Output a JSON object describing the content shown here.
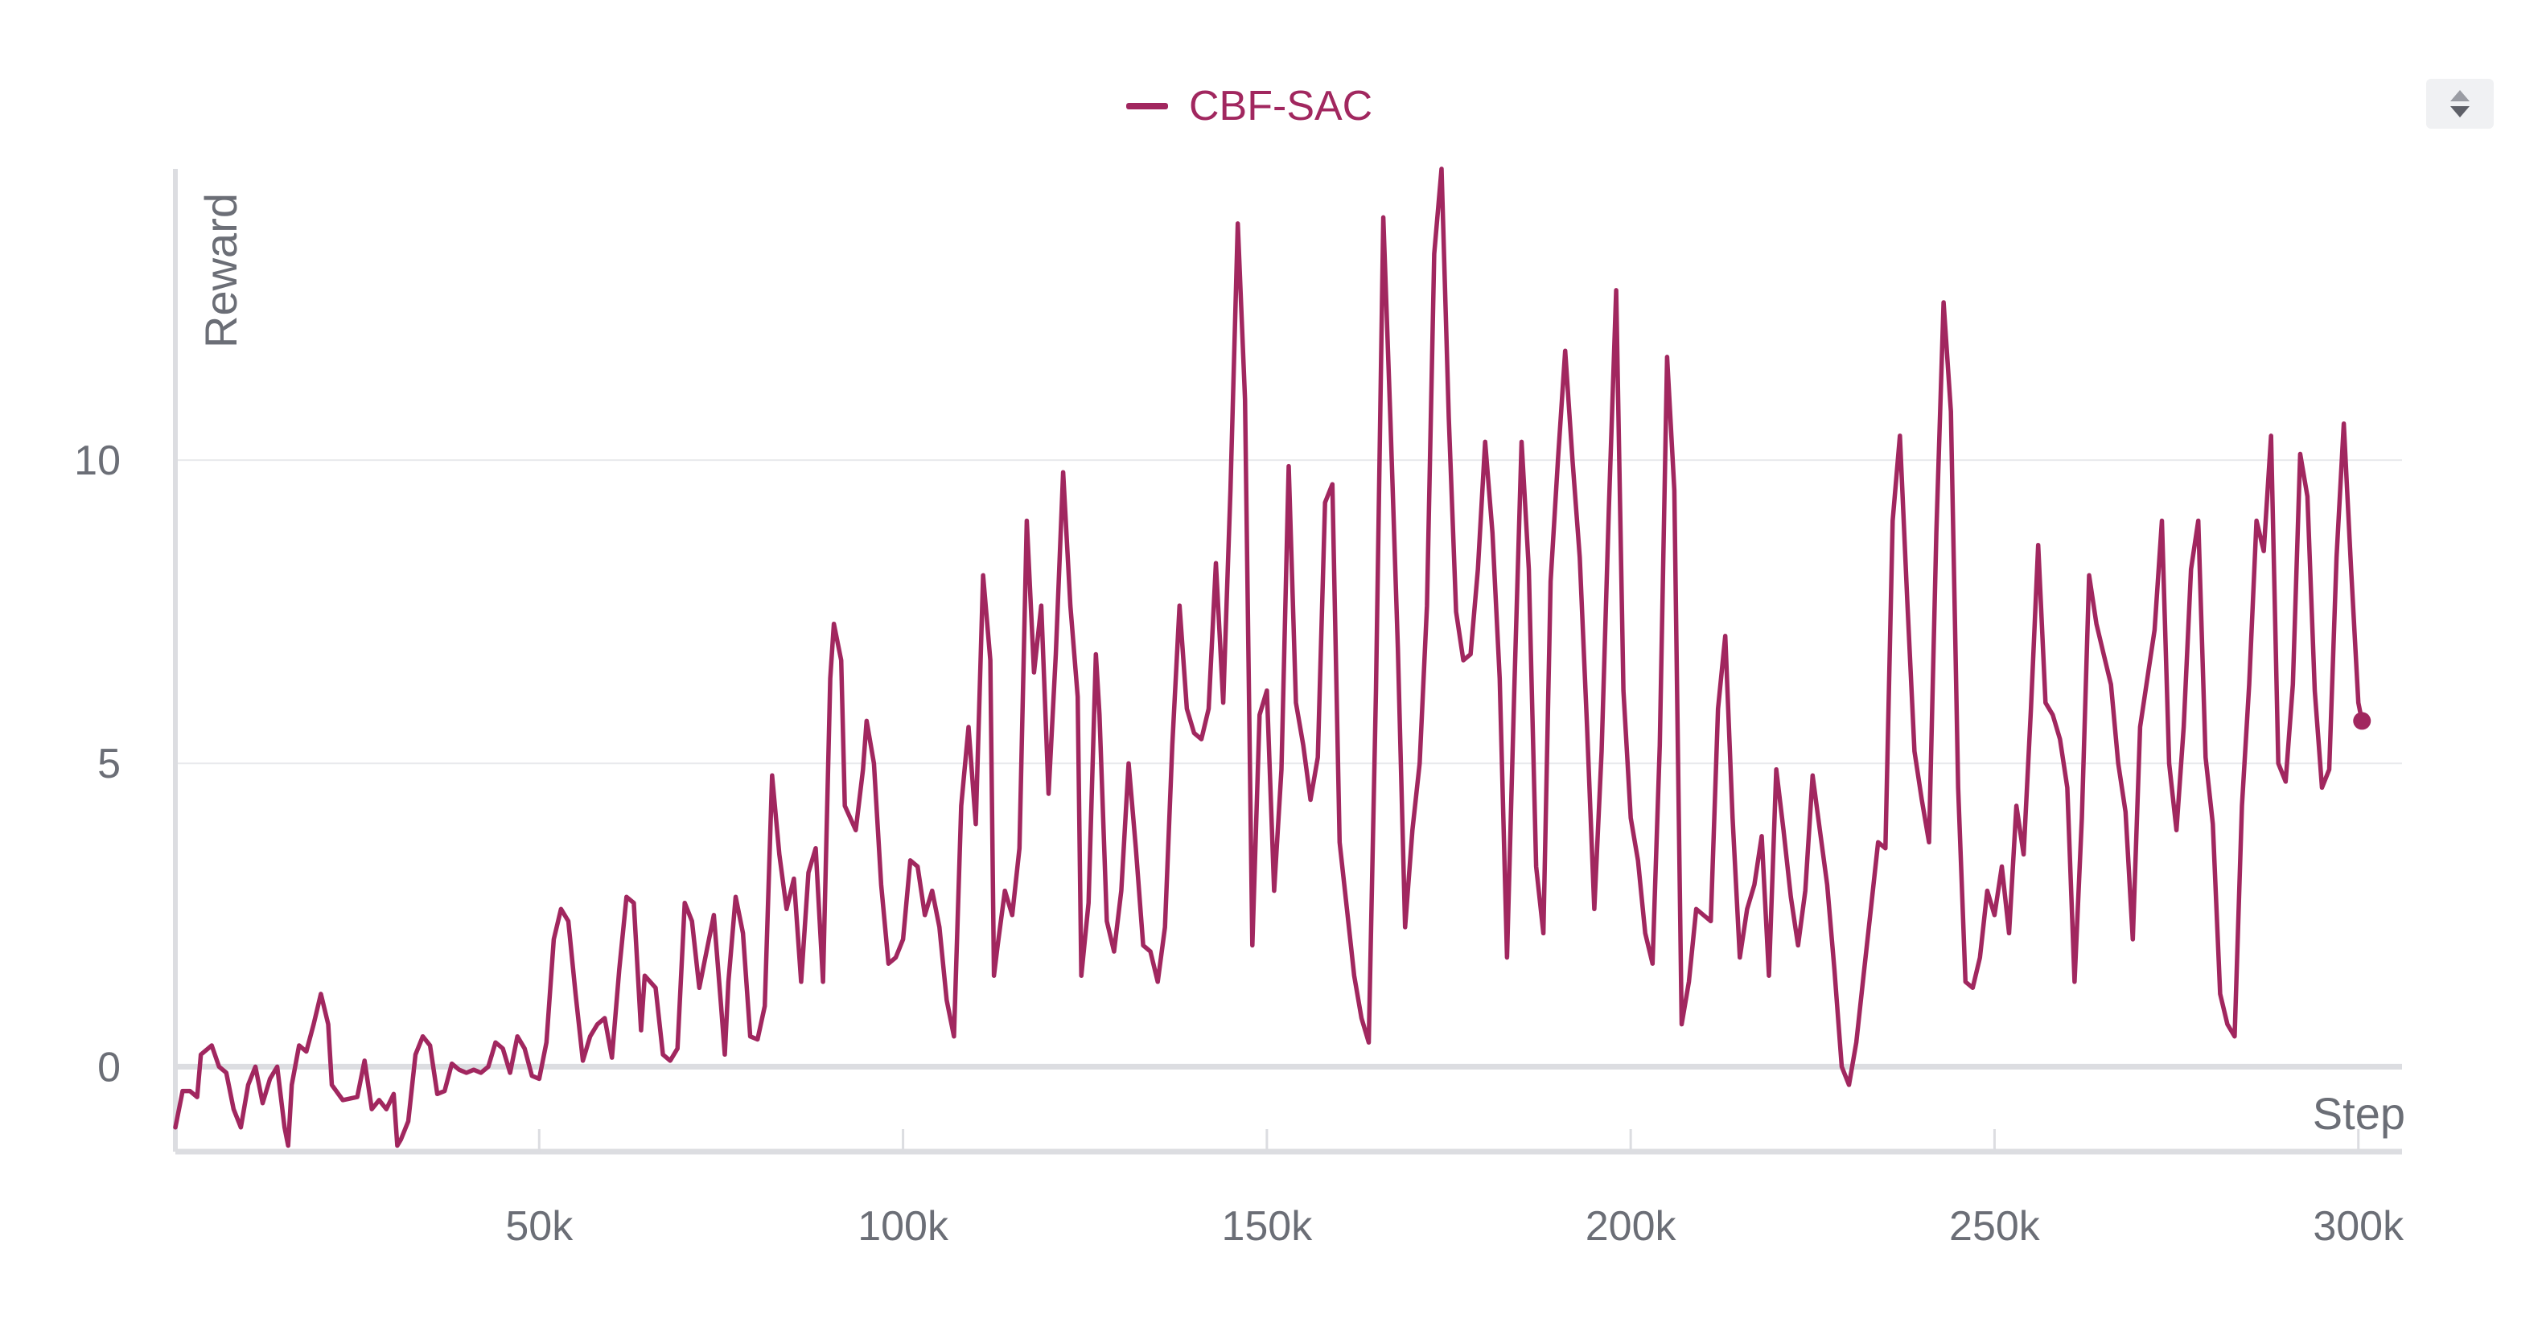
{
  "legend": {
    "label": "CBF-SAC",
    "color": "#a1275f"
  },
  "controls": {
    "sort_icon": "sort-up-down-icon"
  },
  "chart_data": {
    "type": "line",
    "xlabel": "Step",
    "ylabel": "Reward",
    "xlim": [
      0,
      306000
    ],
    "ylim": [
      -1.4,
      14.8
    ],
    "x_ticks": [
      50000,
      100000,
      150000,
      200000,
      250000,
      300000
    ],
    "x_tick_labels": [
      "50k",
      "100k",
      "150k",
      "200k",
      "250k",
      "300k"
    ],
    "y_ticks": [
      0,
      5,
      10
    ],
    "y_tick_labels": [
      "0",
      "5",
      "10"
    ],
    "grid": true,
    "legend_position": "top-center",
    "series": [
      {
        "name": "CBF-SAC",
        "color": "#a1275f",
        "points": [
          [
            0,
            -1.0
          ],
          [
            1000,
            -0.4
          ],
          [
            2000,
            -0.4
          ],
          [
            3000,
            -0.5
          ],
          [
            3500,
            0.2
          ],
          [
            5000,
            0.35
          ],
          [
            6000,
            0.0
          ],
          [
            7000,
            -0.1
          ],
          [
            8000,
            -0.7
          ],
          [
            9000,
            -1.0
          ],
          [
            10000,
            -0.3
          ],
          [
            11000,
            0.0
          ],
          [
            12000,
            -0.6
          ],
          [
            13000,
            -0.2
          ],
          [
            14000,
            0.0
          ],
          [
            15000,
            -1.0
          ],
          [
            15500,
            -1.3
          ],
          [
            16000,
            -0.3
          ],
          [
            17000,
            0.35
          ],
          [
            18000,
            0.25
          ],
          [
            19000,
            0.7
          ],
          [
            20000,
            1.2
          ],
          [
            21000,
            0.7
          ],
          [
            21500,
            -0.3
          ],
          [
            23000,
            -0.55
          ],
          [
            25000,
            -0.5
          ],
          [
            26000,
            0.1
          ],
          [
            27000,
            -0.7
          ],
          [
            28000,
            -0.55
          ],
          [
            29000,
            -0.7
          ],
          [
            30000,
            -0.45
          ],
          [
            30500,
            -1.3
          ],
          [
            31000,
            -1.2
          ],
          [
            32000,
            -0.9
          ],
          [
            33000,
            0.2
          ],
          [
            34000,
            0.5
          ],
          [
            35000,
            0.35
          ],
          [
            36000,
            -0.45
          ],
          [
            37000,
            -0.4
          ],
          [
            38000,
            0.05
          ],
          [
            39000,
            -0.05
          ],
          [
            40000,
            -0.1
          ],
          [
            41000,
            -0.05
          ],
          [
            42000,
            -0.1
          ],
          [
            43000,
            0.0
          ],
          [
            44000,
            0.4
          ],
          [
            45000,
            0.3
          ],
          [
            46000,
            -0.1
          ],
          [
            47000,
            0.5
          ],
          [
            48000,
            0.3
          ],
          [
            49000,
            -0.15
          ],
          [
            50000,
            -0.2
          ],
          [
            51000,
            0.4
          ],
          [
            52000,
            2.1
          ],
          [
            53000,
            2.6
          ],
          [
            54000,
            2.4
          ],
          [
            55000,
            1.2
          ],
          [
            56000,
            0.1
          ],
          [
            57000,
            0.5
          ],
          [
            58000,
            0.7
          ],
          [
            59000,
            0.8
          ],
          [
            60000,
            0.15
          ],
          [
            61000,
            1.6
          ],
          [
            62000,
            2.8
          ],
          [
            63000,
            2.7
          ],
          [
            64000,
            0.6
          ],
          [
            64500,
            1.5
          ],
          [
            66000,
            1.3
          ],
          [
            67000,
            0.2
          ],
          [
            68000,
            0.1
          ],
          [
            69000,
            0.3
          ],
          [
            70000,
            2.7
          ],
          [
            71000,
            2.4
          ],
          [
            72000,
            1.3
          ],
          [
            73000,
            1.9
          ],
          [
            74000,
            2.5
          ],
          [
            75000,
            1.0
          ],
          [
            75500,
            0.2
          ],
          [
            76000,
            1.4
          ],
          [
            77000,
            2.8
          ],
          [
            78000,
            2.2
          ],
          [
            79000,
            0.5
          ],
          [
            80000,
            0.45
          ],
          [
            81000,
            1.0
          ],
          [
            82000,
            4.8
          ],
          [
            83000,
            3.5
          ],
          [
            84000,
            2.6
          ],
          [
            85000,
            3.1
          ],
          [
            86000,
            1.4
          ],
          [
            87000,
            3.2
          ],
          [
            88000,
            3.6
          ],
          [
            89000,
            1.4
          ],
          [
            90000,
            6.4
          ],
          [
            90500,
            7.3
          ],
          [
            91500,
            6.7
          ],
          [
            92000,
            4.3
          ],
          [
            93500,
            3.9
          ],
          [
            94500,
            4.9
          ],
          [
            95000,
            5.7
          ],
          [
            96000,
            5.0
          ],
          [
            97000,
            3.0
          ],
          [
            98000,
            1.7
          ],
          [
            99000,
            1.8
          ],
          [
            100000,
            2.1
          ],
          [
            101000,
            3.4
          ],
          [
            102000,
            3.3
          ],
          [
            103000,
            2.5
          ],
          [
            104000,
            2.9
          ],
          [
            105000,
            2.3
          ],
          [
            106000,
            1.1
          ],
          [
            107000,
            0.5
          ],
          [
            108000,
            4.3
          ],
          [
            109000,
            5.6
          ],
          [
            110000,
            4.0
          ],
          [
            111000,
            8.1
          ],
          [
            112000,
            6.7
          ],
          [
            112500,
            1.5
          ],
          [
            113000,
            2.0
          ],
          [
            114000,
            2.9
          ],
          [
            115000,
            2.5
          ],
          [
            116000,
            3.6
          ],
          [
            117000,
            9.0
          ],
          [
            118000,
            6.5
          ],
          [
            119000,
            7.6
          ],
          [
            120000,
            4.5
          ],
          [
            121000,
            6.8
          ],
          [
            122000,
            9.8
          ],
          [
            123000,
            7.6
          ],
          [
            124000,
            6.1
          ],
          [
            124500,
            1.5
          ],
          [
            125500,
            2.7
          ],
          [
            126500,
            6.8
          ],
          [
            127000,
            5.8
          ],
          [
            128000,
            2.4
          ],
          [
            129000,
            1.9
          ],
          [
            130000,
            2.9
          ],
          [
            131000,
            5.0
          ],
          [
            132000,
            3.6
          ],
          [
            133000,
            2.0
          ],
          [
            134000,
            1.9
          ],
          [
            135000,
            1.4
          ],
          [
            136000,
            2.3
          ],
          [
            137000,
            5.3
          ],
          [
            138000,
            7.6
          ],
          [
            139000,
            5.9
          ],
          [
            140000,
            5.5
          ],
          [
            141000,
            5.4
          ],
          [
            142000,
            5.9
          ],
          [
            143000,
            8.3
          ],
          [
            144000,
            6.0
          ],
          [
            145000,
            9.5
          ],
          [
            146000,
            13.9
          ],
          [
            147000,
            11.0
          ],
          [
            148000,
            2.0
          ],
          [
            149000,
            5.8
          ],
          [
            150000,
            6.2
          ],
          [
            151000,
            2.9
          ],
          [
            152000,
            4.9
          ],
          [
            153000,
            9.9
          ],
          [
            154000,
            6.0
          ],
          [
            155000,
            5.3
          ],
          [
            156000,
            4.4
          ],
          [
            157000,
            5.1
          ],
          [
            158000,
            9.3
          ],
          [
            159000,
            9.6
          ],
          [
            160000,
            3.7
          ],
          [
            161000,
            2.6
          ],
          [
            162000,
            1.5
          ],
          [
            163000,
            0.8
          ],
          [
            164000,
            0.4
          ],
          [
            165000,
            6.2
          ],
          [
            166000,
            14.0
          ],
          [
            167000,
            10.6
          ],
          [
            168000,
            6.9
          ],
          [
            169000,
            2.3
          ],
          [
            170000,
            3.9
          ],
          [
            171000,
            5.0
          ],
          [
            172000,
            7.6
          ],
          [
            173000,
            13.4
          ],
          [
            174000,
            14.8
          ],
          [
            175000,
            10.7
          ],
          [
            176000,
            7.5
          ],
          [
            177000,
            6.7
          ],
          [
            178000,
            6.8
          ],
          [
            179000,
            8.2
          ],
          [
            180000,
            10.3
          ],
          [
            181000,
            8.8
          ],
          [
            182000,
            6.4
          ],
          [
            183000,
            1.8
          ],
          [
            184000,
            6.2
          ],
          [
            185000,
            10.3
          ],
          [
            186000,
            8.2
          ],
          [
            187000,
            3.3
          ],
          [
            188000,
            2.2
          ],
          [
            189000,
            8.0
          ],
          [
            190000,
            10.0
          ],
          [
            191000,
            11.8
          ],
          [
            192000,
            10.0
          ],
          [
            193000,
            8.4
          ],
          [
            194000,
            5.6
          ],
          [
            195000,
            2.6
          ],
          [
            196000,
            5.2
          ],
          [
            197000,
            9.2
          ],
          [
            198000,
            12.8
          ],
          [
            199000,
            6.2
          ],
          [
            200000,
            4.1
          ],
          [
            201000,
            3.4
          ],
          [
            202000,
            2.2
          ],
          [
            203000,
            1.7
          ],
          [
            204000,
            5.3
          ],
          [
            205000,
            11.7
          ],
          [
            206000,
            9.5
          ],
          [
            207000,
            0.7
          ],
          [
            208000,
            1.4
          ],
          [
            209000,
            2.6
          ],
          [
            210000,
            2.5
          ],
          [
            211000,
            2.4
          ],
          [
            212000,
            5.9
          ],
          [
            213000,
            7.1
          ],
          [
            214000,
            4.1
          ],
          [
            215000,
            1.8
          ],
          [
            216000,
            2.6
          ],
          [
            217000,
            3.0
          ],
          [
            218000,
            3.8
          ],
          [
            219000,
            1.5
          ],
          [
            220000,
            4.9
          ],
          [
            221000,
            3.9
          ],
          [
            222000,
            2.8
          ],
          [
            223000,
            2.0
          ],
          [
            224000,
            2.9
          ],
          [
            225000,
            4.8
          ],
          [
            226000,
            3.9
          ],
          [
            227000,
            3.0
          ],
          [
            228000,
            1.6
          ],
          [
            229000,
            0.0
          ],
          [
            230000,
            -0.3
          ],
          [
            231000,
            0.4
          ],
          [
            232000,
            1.5
          ],
          [
            233000,
            2.6
          ],
          [
            234000,
            3.7
          ],
          [
            235000,
            3.6
          ],
          [
            236000,
            9.0
          ],
          [
            237000,
            10.4
          ],
          [
            238000,
            7.7
          ],
          [
            239000,
            5.2
          ],
          [
            240000,
            4.4
          ],
          [
            241000,
            3.7
          ],
          [
            242000,
            8.8
          ],
          [
            243000,
            12.6
          ],
          [
            244000,
            10.8
          ],
          [
            245000,
            4.6
          ],
          [
            246000,
            1.4
          ],
          [
            247000,
            1.3
          ],
          [
            248000,
            1.8
          ],
          [
            249000,
            2.9
          ],
          [
            250000,
            2.5
          ],
          [
            251000,
            3.3
          ],
          [
            252000,
            2.2
          ],
          [
            253000,
            4.3
          ],
          [
            254000,
            3.5
          ],
          [
            255000,
            5.9
          ],
          [
            256000,
            8.6
          ],
          [
            257000,
            6.0
          ],
          [
            258000,
            5.8
          ],
          [
            259000,
            5.4
          ],
          [
            260000,
            4.6
          ],
          [
            261000,
            1.4
          ],
          [
            262000,
            4.1
          ],
          [
            263000,
            8.1
          ],
          [
            264000,
            7.3
          ],
          [
            265000,
            6.8
          ],
          [
            266000,
            6.3
          ],
          [
            267000,
            5.0
          ],
          [
            268000,
            4.2
          ],
          [
            269000,
            2.1
          ],
          [
            270000,
            5.6
          ],
          [
            271000,
            6.4
          ],
          [
            272000,
            7.2
          ],
          [
            273000,
            9.0
          ],
          [
            274000,
            5.0
          ],
          [
            275000,
            3.9
          ],
          [
            276000,
            5.6
          ],
          [
            277000,
            8.2
          ],
          [
            278000,
            9.0
          ],
          [
            279000,
            5.1
          ],
          [
            280000,
            4.0
          ],
          [
            281000,
            1.2
          ],
          [
            282000,
            0.7
          ],
          [
            283000,
            0.5
          ],
          [
            284000,
            4.3
          ],
          [
            285000,
            6.3
          ],
          [
            286000,
            9.0
          ],
          [
            287000,
            8.5
          ],
          [
            288000,
            10.4
          ],
          [
            289000,
            5.0
          ],
          [
            290000,
            4.7
          ],
          [
            291000,
            6.3
          ],
          [
            292000,
            10.1
          ],
          [
            293000,
            9.4
          ],
          [
            294000,
            6.2
          ],
          [
            295000,
            4.6
          ],
          [
            296000,
            4.9
          ],
          [
            297000,
            8.4
          ],
          [
            298000,
            10.6
          ],
          [
            299000,
            8.2
          ],
          [
            300000,
            6.0
          ],
          [
            300500,
            5.7
          ]
        ]
      }
    ]
  }
}
